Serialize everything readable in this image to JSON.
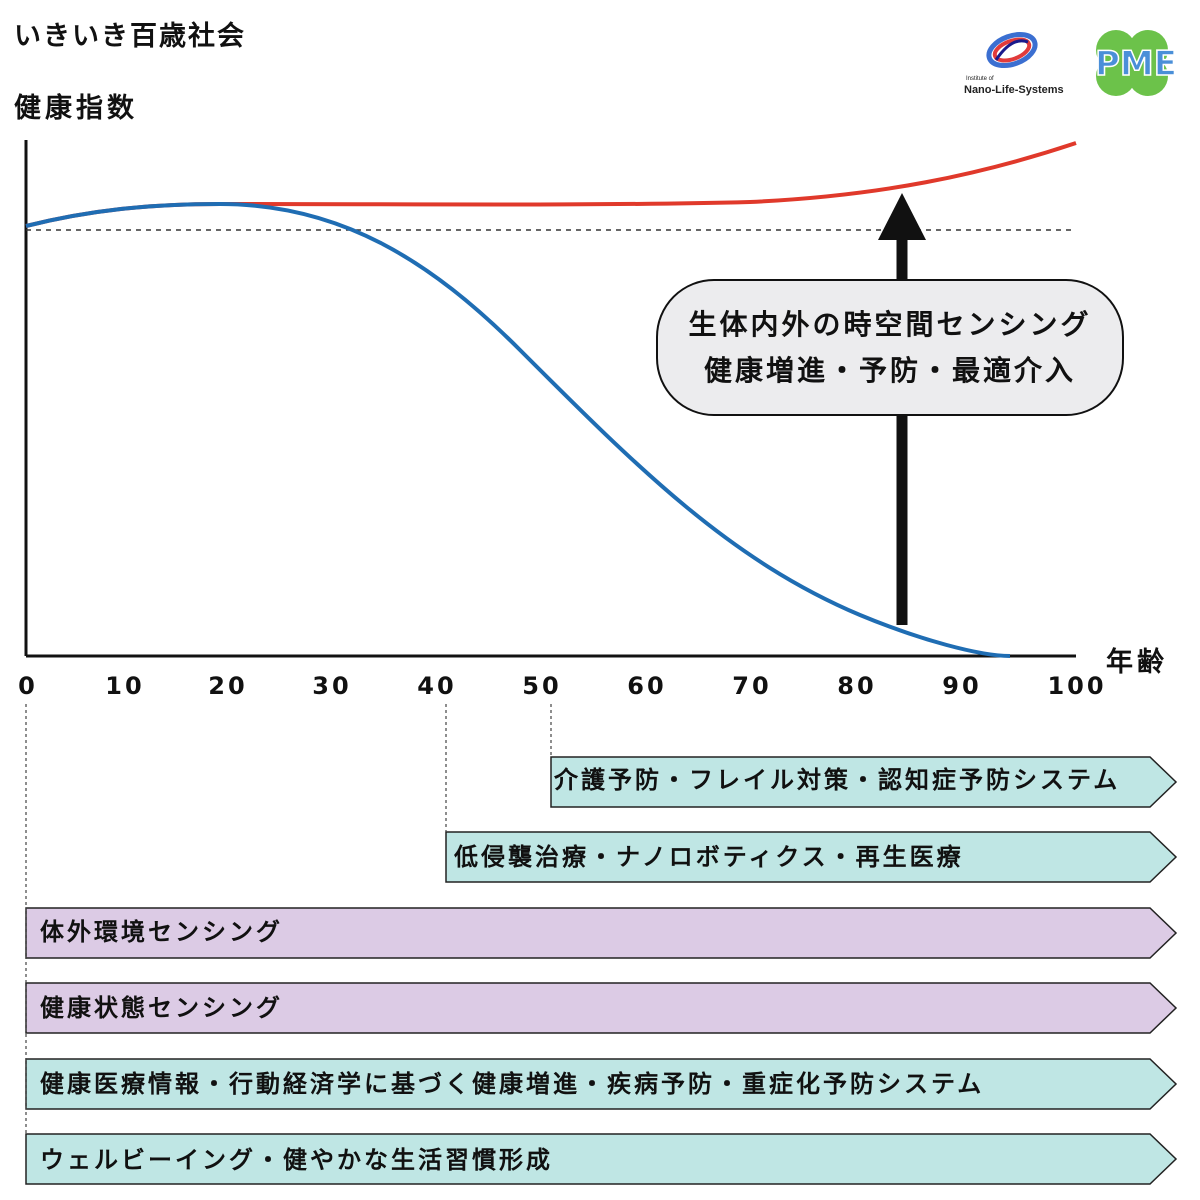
{
  "title": "いきいき百歳社会",
  "chart": {
    "ylabel": "健康指数",
    "xlabel": "年齢",
    "ticks": [
      "0",
      "10",
      "20",
      "30",
      "40",
      "50",
      "60",
      "70",
      "80",
      "90",
      "100"
    ]
  },
  "callout": {
    "line1": "生体内外の時空間センシング",
    "line2": "健康増進・予防・最適介入"
  },
  "bands": [
    {
      "label": "介護予防・フレイル対策・認知症予防システム",
      "start_age": 50,
      "color": "#bfe6e4"
    },
    {
      "label": "低侵襲治療・ナノロボティクス・再生医療",
      "start_age": 40,
      "color": "#bfe6e4"
    },
    {
      "label": "体外環境センシング",
      "start_age": 0,
      "color": "#dccbe5"
    },
    {
      "label": "健康状態センシング",
      "start_age": 0,
      "color": "#dccbe5"
    },
    {
      "label": "健康医療情報・行動経済学に基づく健康増進・疾病予防・重症化予防システム",
      "start_age": 0,
      "color": "#bfe6e4"
    },
    {
      "label": "ウェルビーイング・健やかな生活習慣形成",
      "start_age": 0,
      "color": "#bfe6e4"
    }
  ],
  "logos": {
    "nls_small": "Institute of",
    "nls_name": "Nano-Life-Systems",
    "pme": "PME"
  },
  "colors": {
    "red_curve": "#e0392b",
    "blue_curve": "#1f6db3",
    "teal_band": "#bfe6e4",
    "purple_band": "#dccbe5",
    "clover": "#6cc24a"
  }
}
